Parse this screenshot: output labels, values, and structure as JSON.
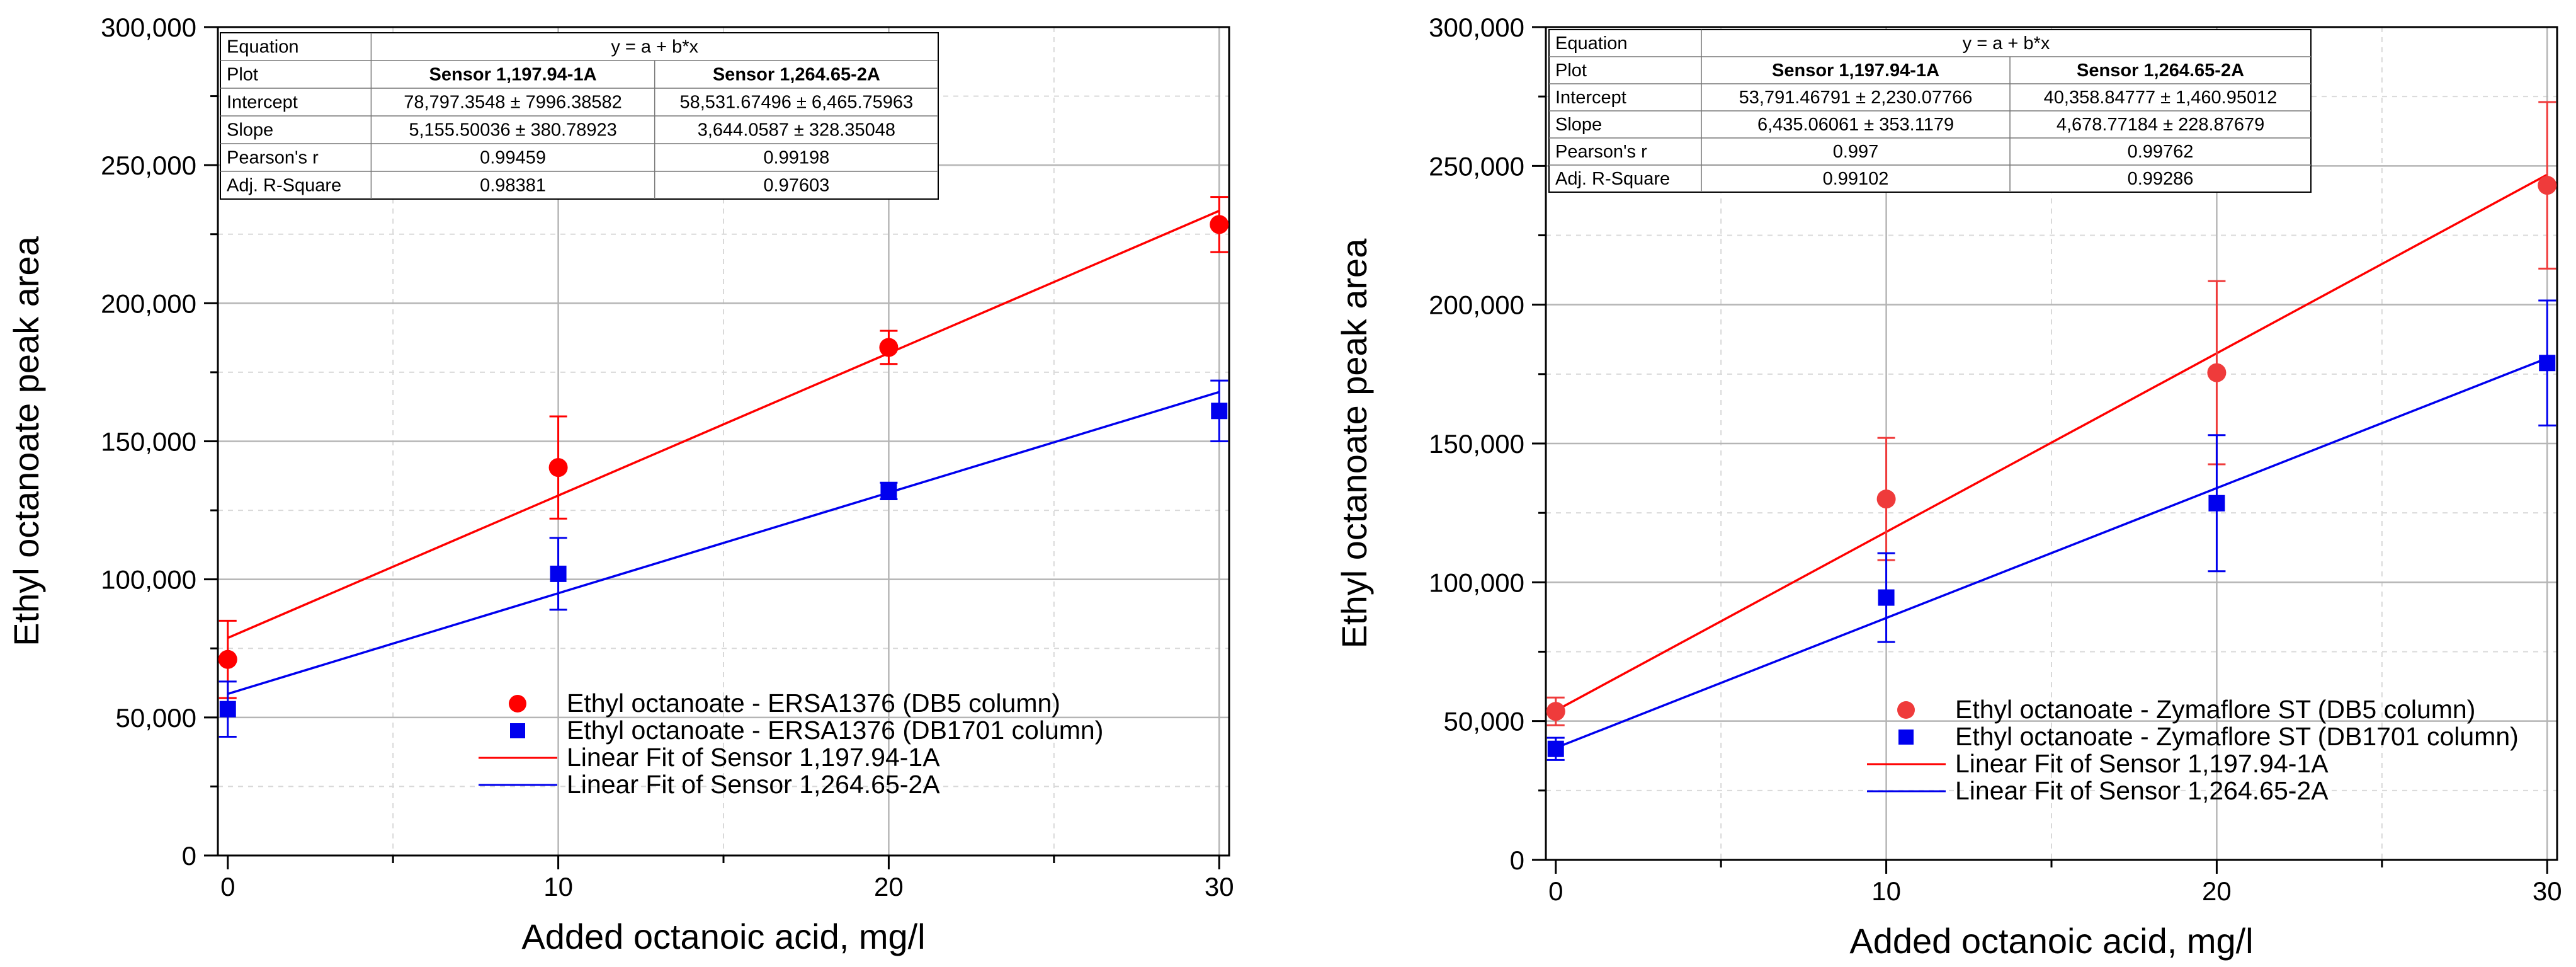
{
  "colors": {
    "series_red": "#ff0000",
    "series_red_light": "#ef3b3b",
    "series_blue": "#0000ee",
    "frame": "#000000",
    "grid_major": "#b5b5b5",
    "grid_minor": "#d9d9d9"
  },
  "chart_data": [
    {
      "type": "scatter",
      "xlabel": "Added octanoic acid, mg/l",
      "ylabel": "Ethyl octanoate peak area",
      "xlim": [
        -0.3,
        30.3
      ],
      "ylim": [
        0,
        300000
      ],
      "xticks": [
        0,
        10,
        20,
        30
      ],
      "xtick_labels": [
        "0",
        "10",
        "20",
        "30"
      ],
      "yticks": [
        0,
        50000,
        100000,
        150000,
        200000,
        250000,
        300000
      ],
      "ytick_labels": [
        "0",
        "50,000",
        "100,000",
        "150,000",
        "200,000",
        "250,000",
        "300,000"
      ],
      "grid": true,
      "legend_position": "bottom-right",
      "legend": [
        "Ethyl octanoate - ERSA1376 (DB5 column)",
        "Ethyl octanoate - ERSA1376 (DB1701 column)",
        "Linear Fit of Sensor 1,197.94-1A",
        "Linear Fit of Sensor 1,264.65-2A"
      ],
      "series": [
        {
          "name": "Ethyl octanoate - ERSA1376 (DB5 column)",
          "marker": "circle",
          "color": "#ff0000",
          "x": [
            0,
            10,
            20,
            30
          ],
          "y": [
            71000,
            140500,
            184000,
            228500
          ],
          "err": [
            14000,
            18500,
            6000,
            10000
          ]
        },
        {
          "name": "Ethyl octanoate - ERSA1376 (DB1701 column)",
          "marker": "square",
          "color": "#0000ee",
          "x": [
            0,
            10,
            20,
            30
          ],
          "y": [
            53000,
            102000,
            132000,
            161000
          ],
          "err": [
            10000,
            13000,
            3000,
            11000
          ]
        }
      ],
      "fits": [
        {
          "name": "Linear Fit of Sensor 1,197.94-1A",
          "color": "#ff0000",
          "intercept": 78797.3548,
          "slope": 5155.50036
        },
        {
          "name": "Linear Fit of Sensor 1,264.65-2A",
          "color": "#0000ee",
          "intercept": 58531.67496,
          "slope": 3644.0587
        }
      ],
      "stats_table": {
        "col_headers": [
          "Equation",
          "y = a + b*x"
        ],
        "rows": [
          [
            "Plot",
            "Sensor 1,197.94-1A",
            "Sensor 1,264.65-2A"
          ],
          [
            "Intercept",
            "78,797.3548 ± 7996.38582",
            "58,531.67496 ± 6,465.75963"
          ],
          [
            "Slope",
            "5,155.50036 ± 380.78923",
            "3,644.0587 ± 328.35048"
          ],
          [
            "Pearson's r",
            "0.99459",
            "0.99198"
          ],
          [
            "Adj. R-Square",
            "0.98381",
            "0.97603"
          ]
        ]
      }
    },
    {
      "type": "scatter",
      "xlabel": "Added octanoic acid, mg/l",
      "ylabel": "Ethyl octanoate peak area",
      "xlim": [
        -0.3,
        30.3
      ],
      "ylim": [
        0,
        300000
      ],
      "xticks": [
        0,
        10,
        20,
        30
      ],
      "xtick_labels": [
        "0",
        "10",
        "20",
        "30"
      ],
      "yticks": [
        0,
        50000,
        100000,
        150000,
        200000,
        250000,
        300000
      ],
      "ytick_labels": [
        "0",
        "50,000",
        "100,000",
        "150,000",
        "200,000",
        "250,000",
        "300,000"
      ],
      "grid": true,
      "legend_position": "bottom-right",
      "legend": [
        "Ethyl octanoate - Zymaflore ST (DB5 column)",
        "Ethyl octanoate - Zymaflore ST (DB1701 column)",
        "Linear Fit of Sensor 1,197.94-1A",
        "Linear Fit of Sensor 1,264.65-2A"
      ],
      "series": [
        {
          "name": "Ethyl octanoate - Zymaflore ST (DB5 column)",
          "marker": "circle",
          "color": "#ef3b3b",
          "x": [
            0,
            10,
            20,
            30
          ],
          "y": [
            53500,
            130000,
            175500,
            243000
          ],
          "err": [
            5000,
            22000,
            33000,
            30000
          ]
        },
        {
          "name": "Ethyl octanoate - Zymaflore ST (DB1701 column)",
          "marker": "square",
          "color": "#0000ee",
          "x": [
            0,
            10,
            20,
            30
          ],
          "y": [
            40000,
            94500,
            128500,
            179000
          ],
          "err": [
            4000,
            16000,
            24500,
            22500
          ]
        }
      ],
      "fits": [
        {
          "name": "Linear Fit of Sensor 1,197.94-1A",
          "color": "#ff0000",
          "intercept": 53791.46791,
          "slope": 6435.06061
        },
        {
          "name": "Linear Fit of Sensor 1,264.65-2A",
          "color": "#0000ee",
          "intercept": 40358.84777,
          "slope": 4678.77184
        }
      ],
      "stats_table": {
        "col_headers": [
          "Equation",
          "y = a + b*x"
        ],
        "rows": [
          [
            "Plot",
            "Sensor 1,197.94-1A",
            "Sensor 1,264.65-2A"
          ],
          [
            "Intercept",
            "53,791.46791 ± 2,230.07766",
            "40,358.84777 ± 1,460.95012"
          ],
          [
            "Slope",
            "6,435.06061 ± 353.1179",
            "4,678.77184 ± 228.87679"
          ],
          [
            "Pearson's r",
            "0.997",
            "0.99762"
          ],
          [
            "Adj. R-Square",
            "0.99102",
            "0.99286"
          ]
        ]
      }
    }
  ]
}
